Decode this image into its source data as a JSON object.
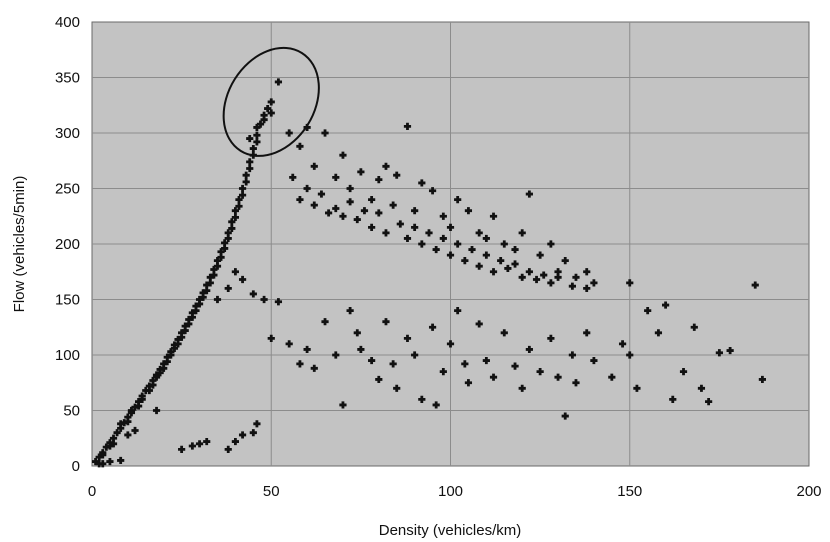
{
  "chart_data": {
    "type": "scatter",
    "title": "",
    "xlabel": "Density (vehicles/km)",
    "ylabel": "Flow (vehicles/5min)",
    "xlim": [
      0,
      200
    ],
    "ylim": [
      0,
      400
    ],
    "x_ticks": [
      0,
      50,
      100,
      150,
      200
    ],
    "y_ticks": [
      0,
      50,
      100,
      150,
      200,
      250,
      300,
      350,
      400
    ],
    "x_tick_labels": [
      "0",
      "50",
      "100",
      "150",
      "200"
    ],
    "y_tick_labels": [
      "0",
      "50",
      "100",
      "150",
      "200",
      "250",
      "300",
      "350",
      "400"
    ],
    "grid": true,
    "legend": "none",
    "plot_background": "#c3c3c3",
    "marker_color": "#111111",
    "series": [
      {
        "points": [
          [
            1,
            4
          ],
          [
            2,
            8
          ],
          [
            3,
            12
          ],
          [
            4,
            17
          ],
          [
            5,
            21
          ],
          [
            6,
            25
          ],
          [
            7,
            30
          ],
          [
            8,
            34
          ],
          [
            9,
            39
          ],
          [
            10,
            44
          ],
          [
            11,
            48
          ],
          [
            12,
            53
          ],
          [
            13,
            58
          ],
          [
            14,
            63
          ],
          [
            15,
            68
          ],
          [
            16,
            72
          ],
          [
            17,
            77
          ],
          [
            18,
            82
          ],
          [
            19,
            87
          ],
          [
            20,
            92
          ],
          [
            21,
            98
          ],
          [
            22,
            103
          ],
          [
            23,
            109
          ],
          [
            24,
            114
          ],
          [
            25,
            120
          ],
          [
            26,
            126
          ],
          [
            27,
            132
          ],
          [
            28,
            138
          ],
          [
            29,
            144
          ],
          [
            30,
            150
          ],
          [
            31,
            156
          ],
          [
            32,
            163
          ],
          [
            33,
            170
          ],
          [
            34,
            177
          ],
          [
            35,
            185
          ],
          [
            36,
            193
          ],
          [
            37,
            201
          ],
          [
            38,
            210
          ],
          [
            39,
            220
          ],
          [
            40,
            230
          ],
          [
            41,
            240
          ],
          [
            42,
            250
          ],
          [
            43,
            262
          ],
          [
            44,
            274
          ],
          [
            45,
            286
          ],
          [
            46,
            298
          ],
          [
            47,
            308
          ],
          [
            48,
            316
          ],
          [
            49,
            322
          ],
          [
            50,
            328
          ],
          [
            2,
            2
          ],
          [
            3,
            10
          ],
          [
            5,
            18
          ],
          [
            6,
            20
          ],
          [
            8,
            38
          ],
          [
            10,
            40
          ],
          [
            11,
            50
          ],
          [
            13,
            54
          ],
          [
            14,
            60
          ],
          [
            16,
            68
          ],
          [
            17,
            73
          ],
          [
            18,
            80
          ],
          [
            19,
            84
          ],
          [
            20,
            88
          ],
          [
            21,
            94
          ],
          [
            22,
            100
          ],
          [
            23,
            106
          ],
          [
            24,
            110
          ],
          [
            25,
            116
          ],
          [
            26,
            122
          ],
          [
            27,
            128
          ],
          [
            28,
            134
          ],
          [
            29,
            140
          ],
          [
            30,
            146
          ],
          [
            31,
            152
          ],
          [
            32,
            158
          ],
          [
            33,
            165
          ],
          [
            34,
            172
          ],
          [
            35,
            180
          ],
          [
            36,
            188
          ],
          [
            37,
            196
          ],
          [
            38,
            205
          ],
          [
            39,
            214
          ],
          [
            40,
            224
          ],
          [
            41,
            234
          ],
          [
            42,
            244
          ],
          [
            43,
            256
          ],
          [
            44,
            268
          ],
          [
            45,
            280
          ],
          [
            46,
            292
          ],
          [
            44,
            295
          ],
          [
            46,
            305
          ],
          [
            48,
            312
          ],
          [
            50,
            318
          ],
          [
            52,
            346
          ],
          [
            55,
            300
          ],
          [
            58,
            288
          ],
          [
            60,
            305
          ],
          [
            62,
            270
          ],
          [
            65,
            300
          ],
          [
            68,
            260
          ],
          [
            70,
            280
          ],
          [
            72,
            250
          ],
          [
            75,
            265
          ],
          [
            78,
            240
          ],
          [
            80,
            258
          ],
          [
            82,
            270
          ],
          [
            85,
            262
          ],
          [
            88,
            306
          ],
          [
            90,
            230
          ],
          [
            92,
            255
          ],
          [
            95,
            248
          ],
          [
            98,
            225
          ],
          [
            100,
            215
          ],
          [
            102,
            240
          ],
          [
            105,
            230
          ],
          [
            108,
            210
          ],
          [
            110,
            205
          ],
          [
            112,
            225
          ],
          [
            115,
            200
          ],
          [
            118,
            195
          ],
          [
            120,
            210
          ],
          [
            122,
            245
          ],
          [
            125,
            190
          ],
          [
            128,
            200
          ],
          [
            130,
            175
          ],
          [
            132,
            185
          ],
          [
            135,
            170
          ],
          [
            138,
            175
          ],
          [
            140,
            165
          ],
          [
            56,
            260
          ],
          [
            58,
            240
          ],
          [
            60,
            250
          ],
          [
            62,
            235
          ],
          [
            64,
            245
          ],
          [
            66,
            228
          ],
          [
            68,
            232
          ],
          [
            70,
            225
          ],
          [
            72,
            238
          ],
          [
            74,
            222
          ],
          [
            76,
            230
          ],
          [
            78,
            215
          ],
          [
            80,
            228
          ],
          [
            82,
            210
          ],
          [
            84,
            235
          ],
          [
            86,
            218
          ],
          [
            88,
            205
          ],
          [
            90,
            215
          ],
          [
            92,
            200
          ],
          [
            94,
            210
          ],
          [
            96,
            195
          ],
          [
            98,
            205
          ],
          [
            100,
            190
          ],
          [
            102,
            200
          ],
          [
            104,
            185
          ],
          [
            106,
            195
          ],
          [
            108,
            180
          ],
          [
            110,
            190
          ],
          [
            112,
            175
          ],
          [
            114,
            185
          ],
          [
            116,
            178
          ],
          [
            118,
            182
          ],
          [
            120,
            170
          ],
          [
            122,
            175
          ],
          [
            124,
            168
          ],
          [
            126,
            172
          ],
          [
            128,
            165
          ],
          [
            130,
            170
          ],
          [
            134,
            162
          ],
          [
            138,
            160
          ],
          [
            35,
            150
          ],
          [
            38,
            160
          ],
          [
            40,
            175
          ],
          [
            42,
            168
          ],
          [
            45,
            155
          ],
          [
            48,
            150
          ],
          [
            50,
            115
          ],
          [
            52,
            148
          ],
          [
            55,
            110
          ],
          [
            58,
            92
          ],
          [
            60,
            105
          ],
          [
            62,
            88
          ],
          [
            65,
            130
          ],
          [
            68,
            100
          ],
          [
            70,
            55
          ],
          [
            72,
            140
          ],
          [
            74,
            120
          ],
          [
            75,
            105
          ],
          [
            78,
            95
          ],
          [
            80,
            78
          ],
          [
            82,
            130
          ],
          [
            84,
            92
          ],
          [
            85,
            70
          ],
          [
            88,
            115
          ],
          [
            90,
            100
          ],
          [
            92,
            60
          ],
          [
            95,
            125
          ],
          [
            96,
            55
          ],
          [
            98,
            85
          ],
          [
            100,
            110
          ],
          [
            102,
            140
          ],
          [
            104,
            92
          ],
          [
            105,
            75
          ],
          [
            108,
            128
          ],
          [
            110,
            95
          ],
          [
            112,
            80
          ],
          [
            115,
            120
          ],
          [
            118,
            90
          ],
          [
            120,
            70
          ],
          [
            122,
            105
          ],
          [
            125,
            85
          ],
          [
            128,
            115
          ],
          [
            130,
            80
          ],
          [
            132,
            45
          ],
          [
            134,
            100
          ],
          [
            135,
            75
          ],
          [
            138,
            120
          ],
          [
            140,
            95
          ],
          [
            145,
            80
          ],
          [
            148,
            110
          ],
          [
            150,
            100
          ],
          [
            152,
            70
          ],
          [
            155,
            140
          ],
          [
            158,
            120
          ],
          [
            160,
            145
          ],
          [
            162,
            60
          ],
          [
            165,
            85
          ],
          [
            168,
            125
          ],
          [
            170,
            70
          ],
          [
            172,
            58
          ],
          [
            175,
            102
          ],
          [
            178,
            104
          ],
          [
            185,
            163
          ],
          [
            187,
            78
          ],
          [
            150,
            165
          ],
          [
            18,
            50
          ],
          [
            25,
            15
          ],
          [
            28,
            18
          ],
          [
            30,
            20
          ],
          [
            32,
            22
          ],
          [
            38,
            15
          ],
          [
            40,
            22
          ],
          [
            42,
            28
          ],
          [
            45,
            30
          ],
          [
            46,
            38
          ],
          [
            8,
            5
          ],
          [
            10,
            28
          ],
          [
            12,
            32
          ],
          [
            3,
            2
          ],
          [
            5,
            4
          ]
        ]
      }
    ],
    "annotations": [
      {
        "type": "ellipse",
        "label": "",
        "center": [
          50,
          328
        ],
        "radii": [
          12,
          52
        ]
      }
    ]
  }
}
